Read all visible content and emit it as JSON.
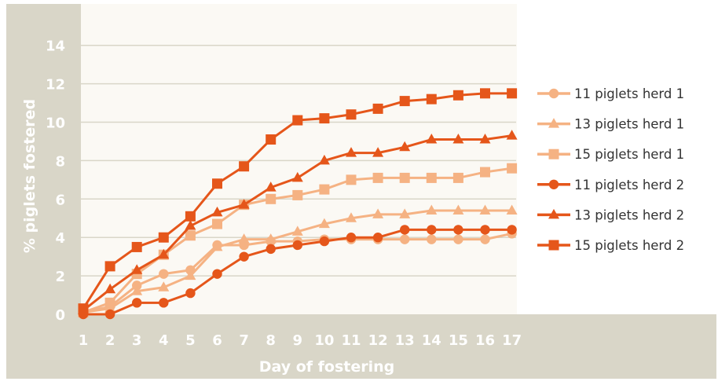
{
  "chart_data": {
    "type": "line",
    "title": "",
    "xlabel": "Day of fostering",
    "ylabel": "% piglets fostered",
    "x": [
      1,
      2,
      3,
      4,
      5,
      6,
      7,
      8,
      9,
      10,
      11,
      12,
      13,
      14,
      15,
      16,
      17
    ],
    "xlim": [
      1,
      17
    ],
    "ylim": [
      0,
      14
    ],
    "yticks": [
      0,
      2,
      4,
      6,
      8,
      10,
      12,
      14
    ],
    "grid": "horizontal",
    "legend": "right",
    "series": [
      {
        "name": "11 piglets herd 1",
        "marker": "circle",
        "color": "#f5b283",
        "values": [
          0.1,
          0.4,
          1.5,
          2.1,
          2.3,
          3.6,
          3.6,
          3.8,
          3.8,
          3.9,
          3.9,
          3.9,
          3.9,
          3.9,
          3.9,
          3.9,
          4.2
        ]
      },
      {
        "name": "13 piglets herd 1",
        "marker": "triangle",
        "color": "#f5b283",
        "values": [
          0.1,
          0.3,
          1.2,
          1.4,
          2.0,
          3.5,
          3.9,
          3.9,
          4.3,
          4.7,
          5.0,
          5.2,
          5.2,
          5.4,
          5.4,
          5.4,
          5.4
        ]
      },
      {
        "name": "15 piglets herd 1",
        "marker": "square",
        "color": "#f5b283",
        "values": [
          0.1,
          0.6,
          2.1,
          3.1,
          4.1,
          4.7,
          5.7,
          6.0,
          6.2,
          6.5,
          7.0,
          7.1,
          7.1,
          7.1,
          7.1,
          7.4,
          7.6
        ]
      },
      {
        "name": "11 piglets herd 2",
        "marker": "circle",
        "color": "#e5561a",
        "values": [
          0.0,
          0.0,
          0.6,
          0.6,
          1.1,
          2.1,
          3.0,
          3.4,
          3.6,
          3.8,
          4.0,
          4.0,
          4.4,
          4.4,
          4.4,
          4.4,
          4.4
        ]
      },
      {
        "name": "13 piglets herd 2",
        "marker": "triangle",
        "color": "#e5561a",
        "values": [
          0.2,
          1.3,
          2.3,
          3.1,
          4.6,
          5.3,
          5.7,
          6.6,
          7.1,
          8.0,
          8.4,
          8.4,
          8.7,
          9.1,
          9.1,
          9.1,
          9.3
        ]
      },
      {
        "name": "15 piglets herd 2",
        "marker": "square",
        "color": "#e5561a",
        "values": [
          0.3,
          2.5,
          3.5,
          4.0,
          5.1,
          6.8,
          7.7,
          9.1,
          10.1,
          10.2,
          10.4,
          10.7,
          11.1,
          11.2,
          11.4,
          11.5,
          11.5
        ]
      }
    ]
  },
  "colors": {
    "frame": "#d9d6c8",
    "plot_bg": "#ffffff",
    "axis_text": "#ffffff",
    "legend_text": "#333333"
  }
}
